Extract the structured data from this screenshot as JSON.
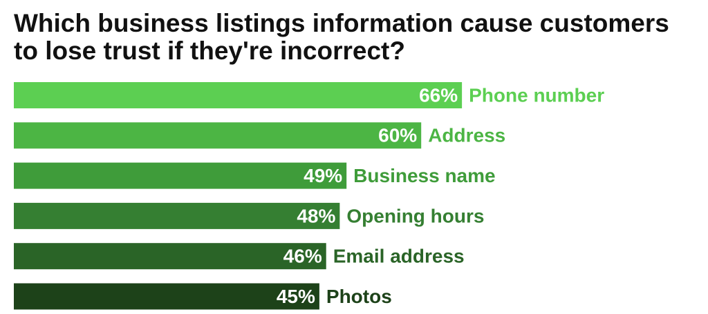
{
  "chart_data": {
    "type": "bar",
    "orientation": "horizontal",
    "title": "Which business listings information cause customers to lose trust if they're incorrect?",
    "categories": [
      "Phone number",
      "Address",
      "Business name",
      "Opening hours",
      "Email address",
      "Photos"
    ],
    "values": [
      66,
      60,
      49,
      48,
      46,
      45
    ],
    "value_labels": [
      "66%",
      "60%",
      "49%",
      "48%",
      "46%",
      "45%"
    ],
    "colors": [
      "#5ccf52",
      "#4cb544",
      "#3f9c3a",
      "#357f32",
      "#2a6427",
      "#1d4219"
    ],
    "xlim": [
      0,
      100
    ]
  }
}
